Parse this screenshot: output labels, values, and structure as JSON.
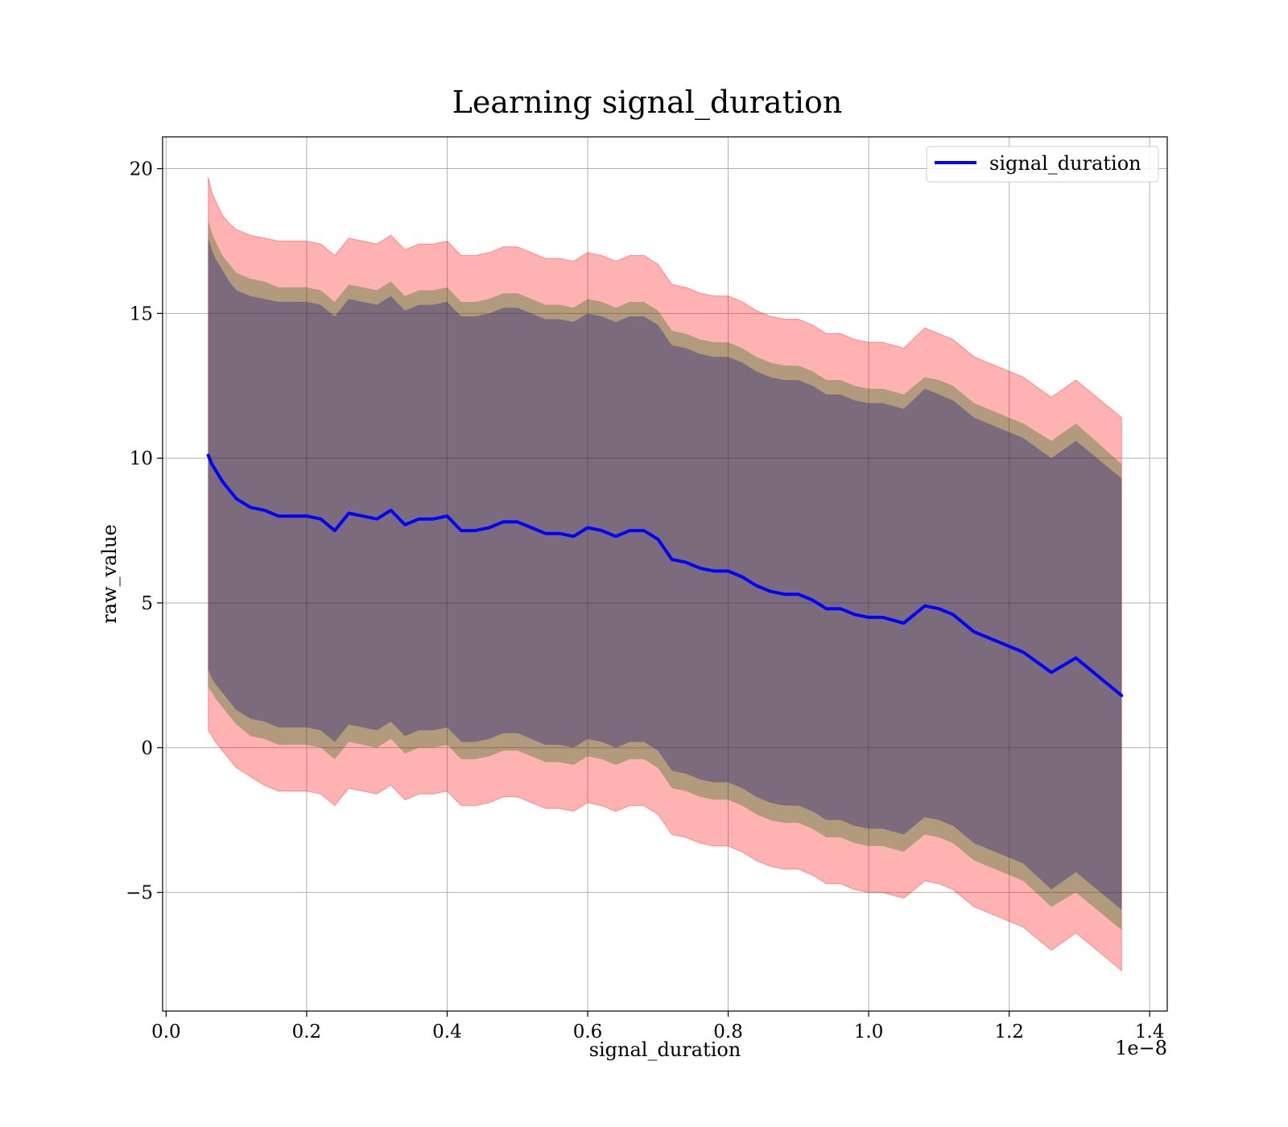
{
  "chart_data": {
    "type": "line",
    "title": "Learning signal_duration",
    "xlabel": "signal_duration",
    "ylabel": "raw_value",
    "x_offset_label": "1e−8",
    "xlim": [
      -0.005,
      1.425
    ],
    "ylim": [
      -9.1,
      21.1
    ],
    "x_ticks": [
      0.0,
      0.2,
      0.4,
      0.6,
      0.8,
      1.0,
      1.2,
      1.4
    ],
    "x_tick_labels": [
      "0.0",
      "0.2",
      "0.4",
      "0.6",
      "0.8",
      "1.0",
      "1.2",
      "1.4"
    ],
    "y_ticks": [
      -5,
      0,
      5,
      10,
      15,
      20
    ],
    "y_tick_labels": [
      "−5",
      "0",
      "5",
      "10",
      "15",
      "20"
    ],
    "grid": true,
    "legend": {
      "placement": "top-right",
      "entries": [
        "signal_duration"
      ]
    },
    "colors": {
      "line": "#0000ff",
      "outer_band": "#ff0000",
      "middle_band": "#006400",
      "inner_band": "#000080"
    },
    "series": [
      {
        "name": "signal_duration",
        "x": [
          0.06,
          0.065,
          0.07,
          0.08,
          0.09,
          0.1,
          0.12,
          0.14,
          0.16,
          0.18,
          0.2,
          0.22,
          0.24,
          0.26,
          0.28,
          0.3,
          0.32,
          0.34,
          0.36,
          0.38,
          0.4,
          0.42,
          0.44,
          0.46,
          0.48,
          0.5,
          0.52,
          0.54,
          0.56,
          0.58,
          0.6,
          0.62,
          0.64,
          0.66,
          0.68,
          0.7,
          0.72,
          0.74,
          0.76,
          0.78,
          0.8,
          0.82,
          0.84,
          0.86,
          0.88,
          0.9,
          0.92,
          0.94,
          0.96,
          0.98,
          1.0,
          1.02,
          1.05,
          1.08,
          1.1,
          1.12,
          1.15,
          1.18,
          1.22,
          1.26,
          1.295,
          1.36
        ],
        "values": [
          10.1,
          9.8,
          9.6,
          9.2,
          8.9,
          8.6,
          8.3,
          8.2,
          8.0,
          8.0,
          8.0,
          7.9,
          7.5,
          8.1,
          8.0,
          7.9,
          8.2,
          7.7,
          7.9,
          7.9,
          8.0,
          7.5,
          7.5,
          7.6,
          7.8,
          7.8,
          7.6,
          7.4,
          7.4,
          7.3,
          7.6,
          7.5,
          7.3,
          7.5,
          7.5,
          7.2,
          6.5,
          6.4,
          6.2,
          6.1,
          6.1,
          5.9,
          5.6,
          5.4,
          5.3,
          5.3,
          5.1,
          4.8,
          4.8,
          4.6,
          4.5,
          4.5,
          4.3,
          4.9,
          4.8,
          4.6,
          4.0,
          3.7,
          3.3,
          2.6,
          3.1,
          1.8
        ],
        "upper_3": [
          19.7,
          19.2,
          18.9,
          18.4,
          18.1,
          17.9,
          17.7,
          17.6,
          17.5,
          17.5,
          17.5,
          17.4,
          17.0,
          17.6,
          17.5,
          17.4,
          17.7,
          17.2,
          17.4,
          17.4,
          17.5,
          17.0,
          17.0,
          17.1,
          17.3,
          17.3,
          17.1,
          16.9,
          16.9,
          16.8,
          17.1,
          17.0,
          16.8,
          17.0,
          17.0,
          16.7,
          16.0,
          15.9,
          15.7,
          15.6,
          15.6,
          15.4,
          15.1,
          14.9,
          14.8,
          14.8,
          14.6,
          14.3,
          14.3,
          14.1,
          14.0,
          14.0,
          13.8,
          14.5,
          14.3,
          14.1,
          13.5,
          13.2,
          12.8,
          12.1,
          12.7,
          11.4
        ],
        "lower_3": [
          0.6,
          0.4,
          0.2,
          -0.1,
          -0.4,
          -0.7,
          -1.0,
          -1.3,
          -1.5,
          -1.5,
          -1.5,
          -1.6,
          -2.0,
          -1.4,
          -1.5,
          -1.6,
          -1.3,
          -1.8,
          -1.6,
          -1.6,
          -1.5,
          -2.0,
          -2.0,
          -1.9,
          -1.7,
          -1.7,
          -1.9,
          -2.1,
          -2.1,
          -2.2,
          -1.9,
          -2.0,
          -2.2,
          -2.0,
          -2.0,
          -2.3,
          -3.0,
          -3.1,
          -3.3,
          -3.4,
          -3.4,
          -3.6,
          -3.9,
          -4.1,
          -4.2,
          -4.2,
          -4.4,
          -4.7,
          -4.7,
          -4.9,
          -5.0,
          -5.0,
          -5.2,
          -4.6,
          -4.7,
          -4.9,
          -5.5,
          -5.8,
          -6.2,
          -7.0,
          -6.4,
          -7.7
        ],
        "upper_2": [
          18.2,
          17.8,
          17.5,
          17.0,
          16.7,
          16.4,
          16.2,
          16.1,
          15.9,
          15.9,
          15.9,
          15.8,
          15.4,
          16.0,
          15.9,
          15.8,
          16.1,
          15.6,
          15.8,
          15.8,
          15.9,
          15.4,
          15.4,
          15.5,
          15.7,
          15.7,
          15.5,
          15.3,
          15.3,
          15.2,
          15.5,
          15.4,
          15.2,
          15.4,
          15.4,
          15.1,
          14.4,
          14.3,
          14.1,
          14.0,
          14.0,
          13.8,
          13.5,
          13.3,
          13.2,
          13.2,
          13.0,
          12.7,
          12.7,
          12.5,
          12.4,
          12.4,
          12.2,
          12.8,
          12.7,
          12.5,
          11.9,
          11.6,
          11.2,
          10.6,
          11.2,
          9.8
        ],
        "lower_2": [
          2.1,
          1.9,
          1.7,
          1.4,
          1.1,
          0.8,
          0.4,
          0.3,
          0.1,
          0.1,
          0.1,
          0.0,
          -0.4,
          0.2,
          0.1,
          0.0,
          0.3,
          -0.2,
          0.0,
          0.0,
          0.1,
          -0.4,
          -0.4,
          -0.3,
          -0.1,
          -0.1,
          -0.3,
          -0.5,
          -0.5,
          -0.6,
          -0.3,
          -0.4,
          -0.6,
          -0.4,
          -0.4,
          -0.7,
          -1.4,
          -1.5,
          -1.7,
          -1.8,
          -1.8,
          -2.0,
          -2.3,
          -2.5,
          -2.6,
          -2.6,
          -2.8,
          -3.1,
          -3.1,
          -3.3,
          -3.4,
          -3.4,
          -3.6,
          -3.0,
          -3.1,
          -3.3,
          -3.9,
          -4.2,
          -4.6,
          -5.5,
          -5.0,
          -6.3
        ],
        "upper_1": [
          17.6,
          17.2,
          16.9,
          16.5,
          16.1,
          15.8,
          15.6,
          15.5,
          15.4,
          15.4,
          15.4,
          15.3,
          14.9,
          15.5,
          15.4,
          15.3,
          15.6,
          15.1,
          15.3,
          15.3,
          15.4,
          14.9,
          14.9,
          15.0,
          15.2,
          15.2,
          15.0,
          14.8,
          14.8,
          14.7,
          15.0,
          14.9,
          14.7,
          14.9,
          14.9,
          14.6,
          13.9,
          13.8,
          13.6,
          13.5,
          13.5,
          13.3,
          13.0,
          12.8,
          12.7,
          12.7,
          12.5,
          12.2,
          12.2,
          12.0,
          11.9,
          11.9,
          11.7,
          12.4,
          12.2,
          12.0,
          11.4,
          11.1,
          10.7,
          10.0,
          10.6,
          9.3
        ],
        "lower_1": [
          2.7,
          2.4,
          2.2,
          1.9,
          1.6,
          1.3,
          1.0,
          0.9,
          0.7,
          0.7,
          0.7,
          0.6,
          0.2,
          0.8,
          0.7,
          0.6,
          0.9,
          0.4,
          0.6,
          0.6,
          0.7,
          0.2,
          0.2,
          0.3,
          0.5,
          0.5,
          0.3,
          0.1,
          0.1,
          0.0,
          0.3,
          0.2,
          0.0,
          0.2,
          0.2,
          -0.1,
          -0.8,
          -0.9,
          -1.1,
          -1.2,
          -1.2,
          -1.4,
          -1.7,
          -1.9,
          -2.0,
          -2.0,
          -2.2,
          -2.5,
          -2.5,
          -2.7,
          -2.8,
          -2.8,
          -3.0,
          -2.4,
          -2.5,
          -2.7,
          -3.3,
          -3.6,
          -4.0,
          -4.9,
          -4.3,
          -5.6
        ]
      }
    ]
  }
}
